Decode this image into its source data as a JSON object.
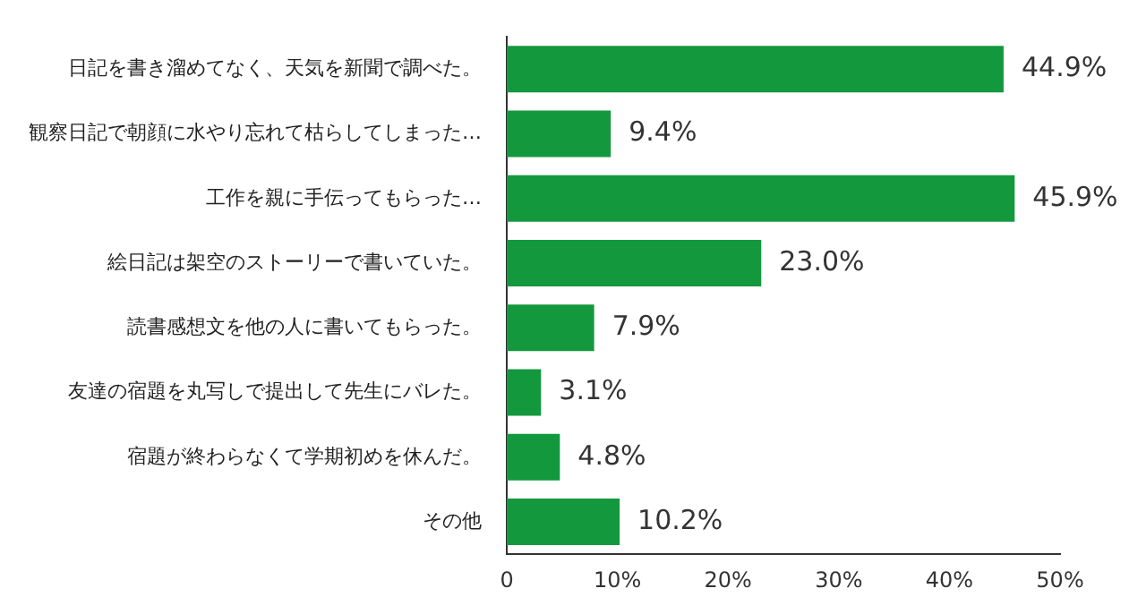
{
  "chart_data": {
    "type": "bar",
    "orientation": "horizontal",
    "categories": [
      "日記を書き溜めてなく、天気を新聞で調べた。",
      "観察日記で朝顔に水やり忘れて枯らしてしまった…",
      "工作を親に手伝ってもらった…",
      "絵日記は架空のストーリーで書いていた。",
      "読書感想文を他の人に書いてもらった。",
      "友達の宿題を丸写しで提出して先生にバレた。",
      "宿題が終わらなくて学期初めを休んだ。",
      "その他"
    ],
    "values": [
      44.9,
      9.4,
      45.9,
      23.0,
      7.9,
      3.1,
      4.8,
      10.2
    ],
    "value_labels": [
      "44.9%",
      "9.4%",
      "45.9%",
      "23.0%",
      "7.9%",
      "3.1%",
      "4.8%",
      "10.2%"
    ],
    "color": "#14983e",
    "xlim": [
      0,
      50
    ],
    "xticks": [
      0,
      {
        "value": 10,
        "label": "10%"
      },
      {
        "value": 20,
        "label": "20%"
      },
      {
        "value": 30,
        "label": "30%"
      },
      {
        "value": 40,
        "label": "40%"
      },
      {
        "value": 50,
        "label": "50%"
      }
    ],
    "grid": false,
    "legend": false
  }
}
